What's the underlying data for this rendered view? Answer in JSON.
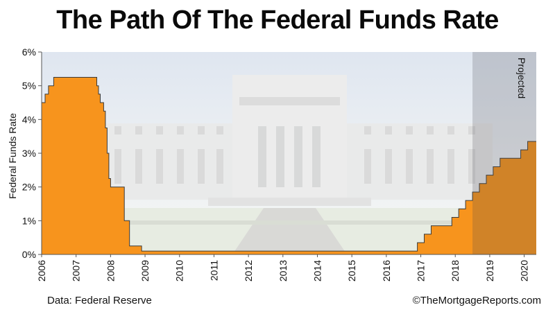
{
  "page": {
    "title": "The Path Of The Federal Funds Rate",
    "source": "Data: Federal Reserve",
    "copyright": "©TheMortgageReports.com"
  },
  "chart_data": {
    "type": "area",
    "title": "The Path Of The Federal Funds Rate",
    "xlabel": "",
    "ylabel": "Federal Funds Rate",
    "xlim": [
      2006.0,
      2020.35
    ],
    "ylim": [
      0,
      6
    ],
    "yticks": [
      0,
      1,
      2,
      3,
      4,
      5,
      6
    ],
    "ytick_labels": [
      "0%",
      "1%",
      "2%",
      "3%",
      "4%",
      "5%",
      "6%"
    ],
    "xticks": [
      2006,
      2007,
      2008,
      2009,
      2010,
      2011,
      2012,
      2013,
      2014,
      2015,
      2016,
      2017,
      2018,
      2019,
      2020
    ],
    "xtick_labels": [
      "2006",
      "2007",
      "2008",
      "2009",
      "2010",
      "2011",
      "2012",
      "2013",
      "2014",
      "2015",
      "2016",
      "2017",
      "2018",
      "2019",
      "2020"
    ],
    "fill_color": "#f7941d",
    "line_color": "#3a3a3a",
    "background_image": "federal-reserve-building-photo",
    "projection": {
      "label": "Projected",
      "start": 2018.5,
      "end": 2020.35,
      "shade_color": "#4a4a52"
    },
    "series": [
      {
        "step": true,
        "x": [
          2006.0,
          2006.1,
          2006.2,
          2006.35,
          2006.45,
          2007.6,
          2007.65,
          2007.7,
          2007.8,
          2007.85,
          2007.9,
          2007.95,
          2008.0,
          2008.05,
          2008.1,
          2008.4,
          2008.5,
          2008.55,
          2008.9,
          2015.9,
          2016.9,
          2017.1,
          2017.3,
          2017.9,
          2018.1,
          2018.3,
          2018.5,
          2018.7,
          2018.9,
          2019.1,
          2019.3,
          2019.6,
          2019.9,
          2020.1,
          2020.35
        ],
        "y": [
          4.5,
          4.75,
          5.0,
          5.25,
          5.25,
          5.0,
          4.75,
          4.5,
          4.25,
          3.75,
          3.0,
          2.25,
          2.0,
          2.0,
          2.0,
          1.0,
          1.0,
          0.25,
          0.1,
          0.1,
          0.35,
          0.6,
          0.85,
          1.1,
          1.35,
          1.6,
          1.85,
          2.1,
          2.35,
          2.6,
          2.85,
          2.85,
          3.1,
          3.35,
          3.35
        ]
      }
    ]
  }
}
